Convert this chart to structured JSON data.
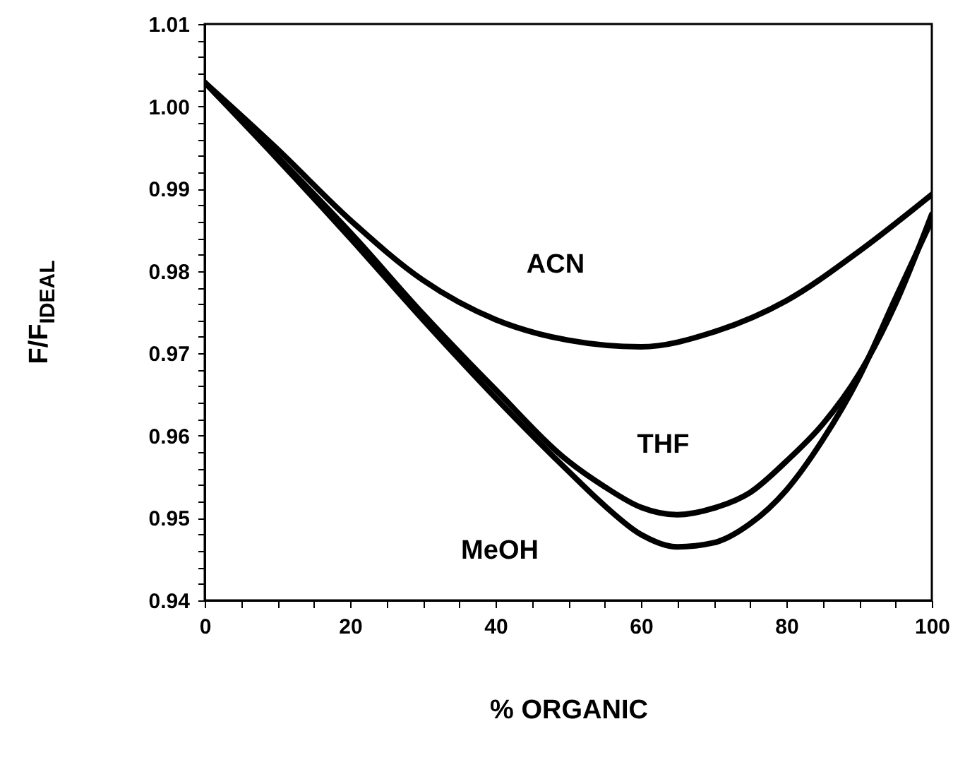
{
  "chart_data": {
    "type": "line",
    "xlabel": "% ORGANIC",
    "ylabel": "F/F$_{IDEAL}$",
    "x": [
      0,
      10,
      20,
      30,
      40,
      50,
      55,
      60,
      65,
      70,
      75,
      80,
      85,
      90,
      95,
      100
    ],
    "series": [
      {
        "name": "ACN",
        "color": "#000000",
        "x": [
          0,
          10,
          20,
          30,
          40,
          50,
          60,
          70,
          80,
          90,
          100
        ],
        "values": [
          1.0029,
          0.9948,
          0.9862,
          0.9789,
          0.9741,
          0.9716,
          0.9708,
          0.9726,
          0.9764,
          0.9824,
          0.9893
        ]
      },
      {
        "name": "THF",
        "color": "#000000",
        "values": [
          1.0029,
          0.9939,
          0.9847,
          0.9748,
          0.9656,
          0.9569,
          0.9538,
          0.9513,
          0.9504,
          0.9512,
          0.9531,
          0.9569,
          0.9614,
          0.9675,
          0.976,
          0.9869
        ]
      },
      {
        "name": "MeOH",
        "color": "#000000",
        "values": [
          1.0029,
          0.9936,
          0.984,
          0.9741,
          0.9646,
          0.9557,
          0.9515,
          0.948,
          0.9465,
          0.947,
          0.9493,
          0.9534,
          0.9595,
          0.9671,
          0.9767,
          0.9862
        ]
      }
    ],
    "xlim": [
      0,
      100
    ],
    "xticks": [
      0,
      {
        "value": 5,
        "label": null
      },
      {
        "value": 10,
        "label": null
      },
      {
        "value": 15,
        "label": null
      },
      20,
      {
        "value": 25,
        "label": null
      },
      {
        "value": 30,
        "label": null
      },
      {
        "value": 35,
        "label": null
      },
      40,
      {
        "value": 45,
        "label": null
      },
      {
        "value": 50,
        "label": null
      },
      {
        "value": 55,
        "label": null
      },
      60,
      {
        "value": 65,
        "label": null
      },
      {
        "value": 70,
        "label": null
      },
      {
        "value": 75,
        "label": null
      },
      80,
      {
        "value": 85,
        "label": null
      },
      {
        "value": 90,
        "label": null
      },
      {
        "value": 95,
        "label": null
      },
      100
    ],
    "ylim": [
      0.94,
      1.01
    ],
    "yticks": [
      0.94,
      {
        "value": 0.942,
        "label": null
      },
      {
        "value": 0.944,
        "label": null
      },
      {
        "value": 0.946,
        "label": null
      },
      {
        "value": 0.948,
        "label": null
      },
      0.95,
      {
        "value": 0.952,
        "label": null
      },
      {
        "value": 0.954,
        "label": null
      },
      {
        "value": 0.956,
        "label": null
      },
      {
        "value": 0.958,
        "label": null
      },
      0.96,
      {
        "value": 0.962,
        "label": null
      },
      {
        "value": 0.964,
        "label": null
      },
      {
        "value": 0.966,
        "label": null
      },
      {
        "value": 0.968,
        "label": null
      },
      0.97,
      {
        "value": 0.972,
        "label": null
      },
      {
        "value": 0.974,
        "label": null
      },
      {
        "value": 0.976,
        "label": null
      },
      {
        "value": 0.978,
        "label": null
      },
      0.98,
      {
        "value": 0.982,
        "label": null
      },
      {
        "value": 0.984,
        "label": null
      },
      {
        "value": 0.986,
        "label": null
      },
      {
        "value": 0.988,
        "label": null
      },
      0.99,
      {
        "value": 0.992,
        "label": null
      },
      {
        "value": 0.994,
        "label": null
      },
      {
        "value": 0.996,
        "label": null
      },
      {
        "value": 0.998,
        "label": null
      },
      {
        "value": 1,
        "label": "1.00"
      },
      {
        "value": 1.002,
        "label": null
      },
      {
        "value": 1.004,
        "label": null
      },
      {
        "value": 1.006,
        "label": null
      },
      {
        "value": 1.008,
        "label": null
      },
      1.01
    ],
    "line_style": "solid"
  }
}
